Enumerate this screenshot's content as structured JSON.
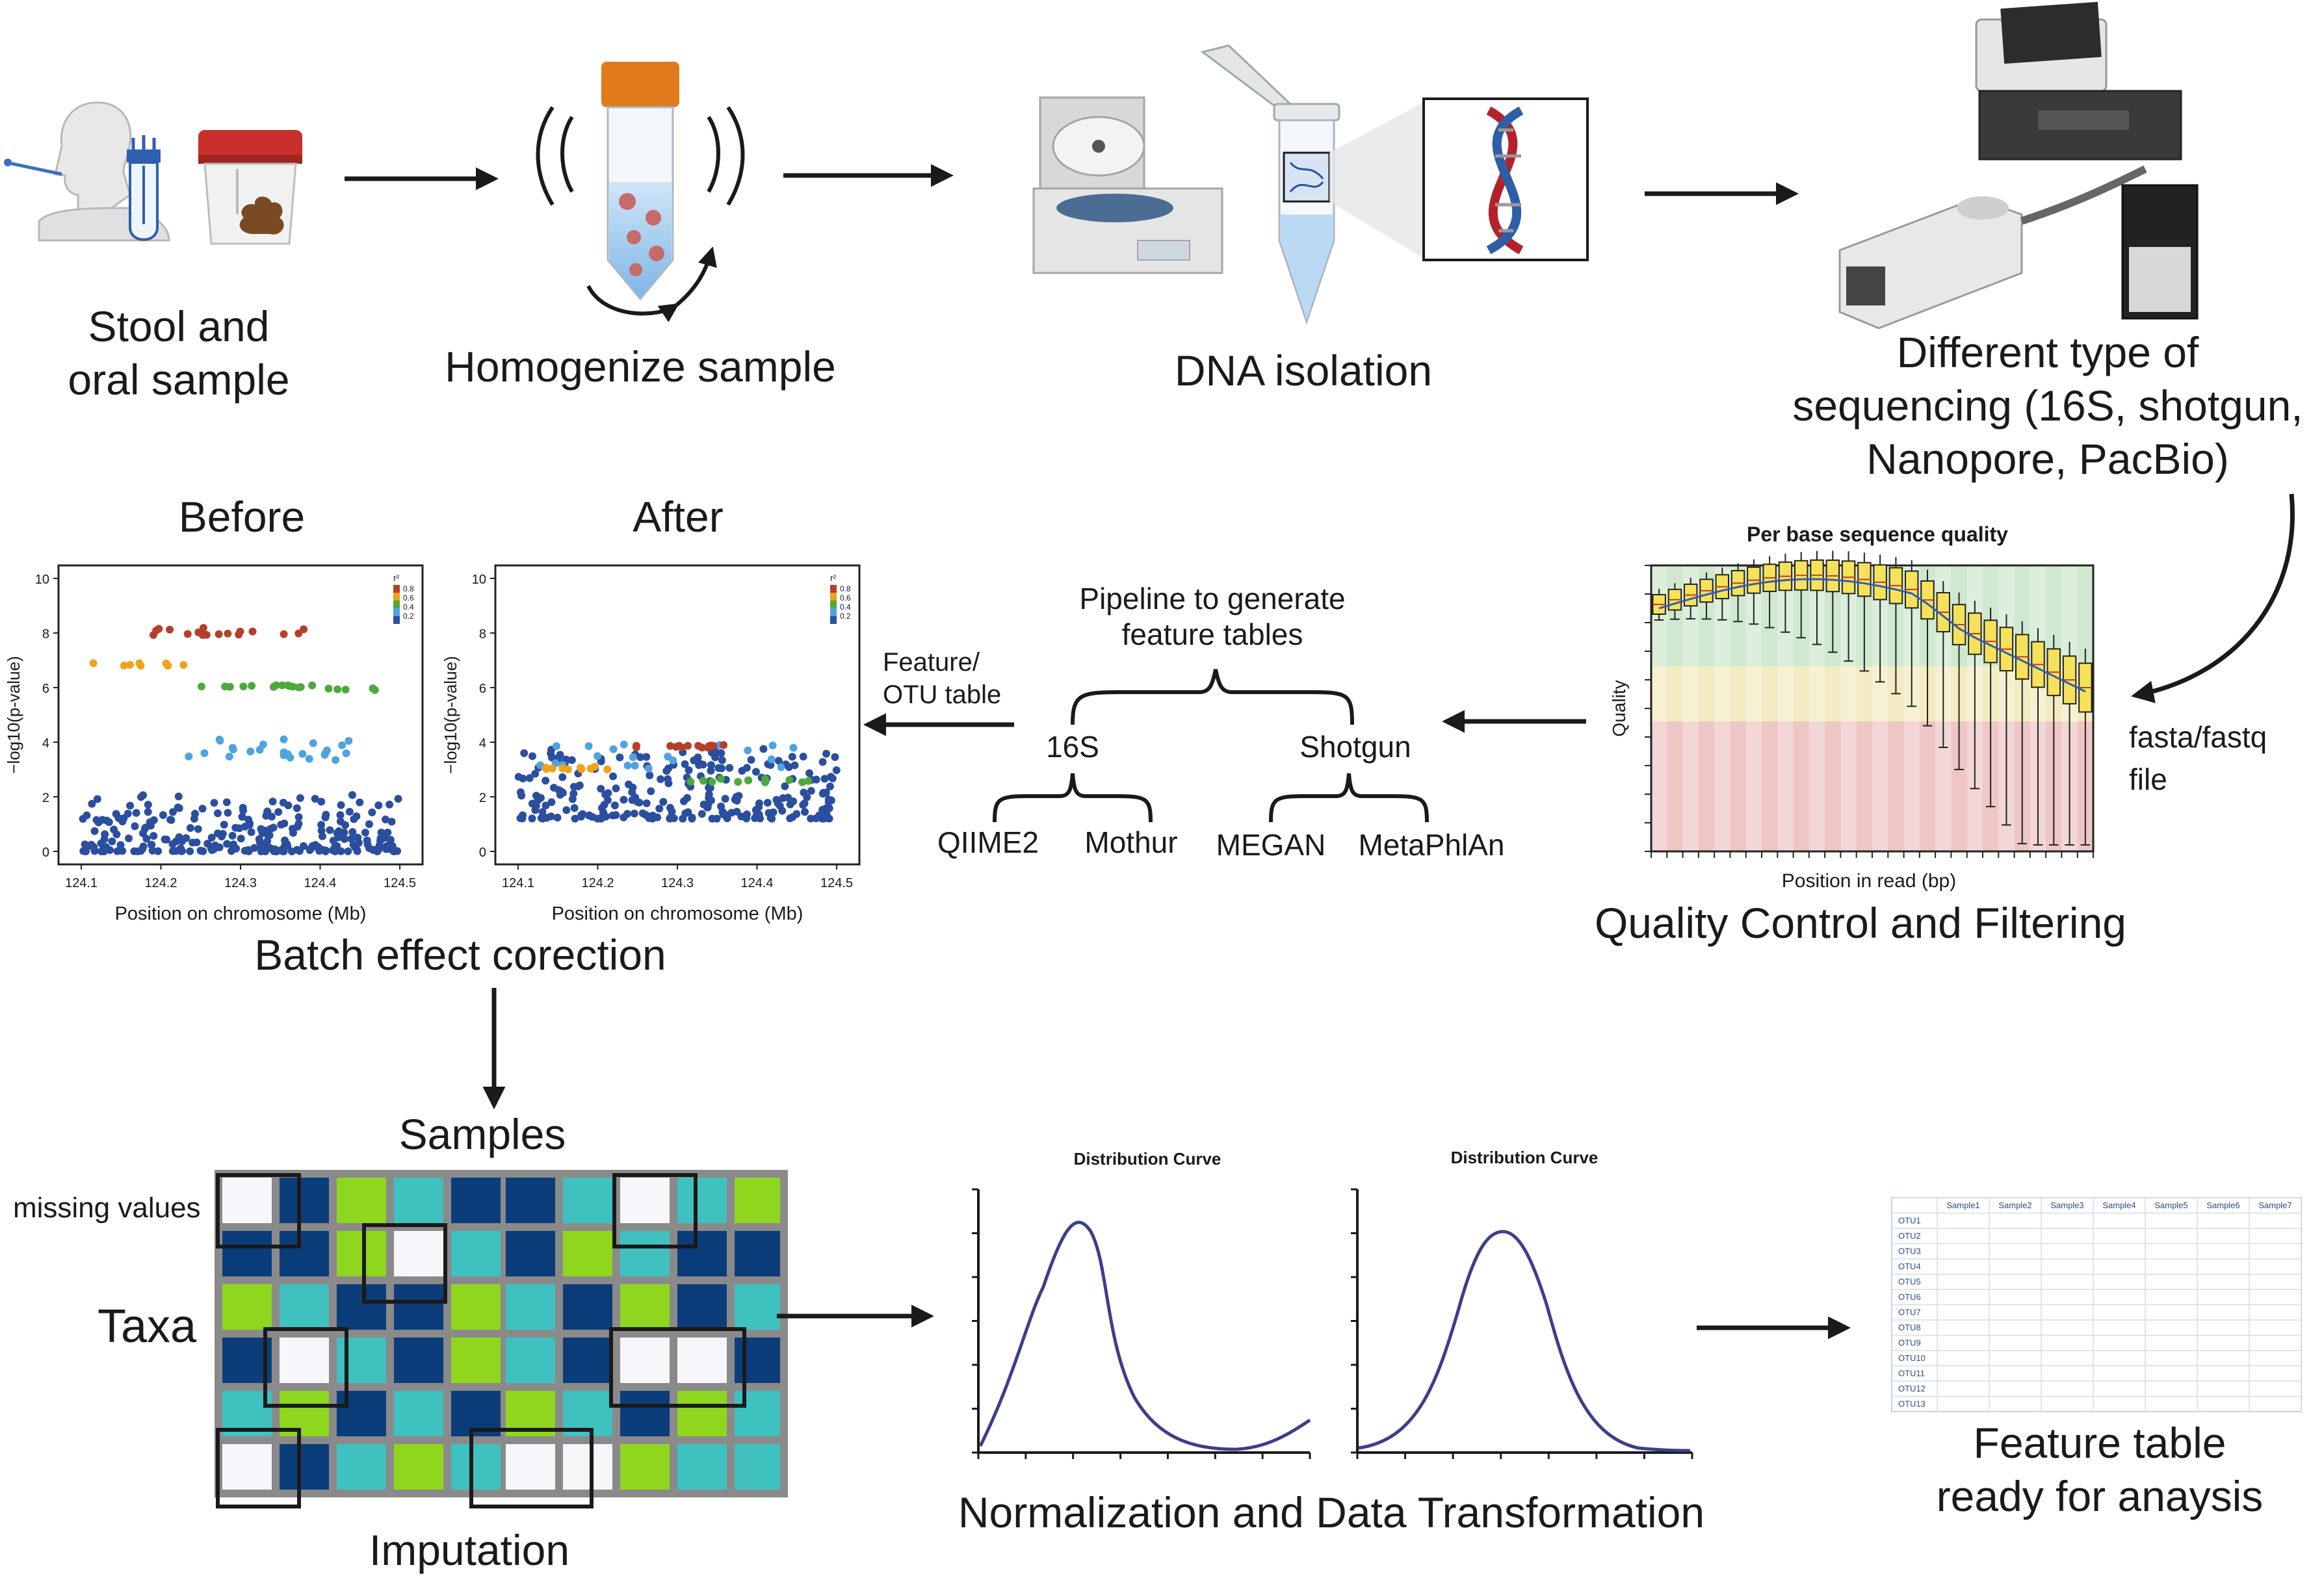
{
  "workflow": {
    "step_stool": {
      "line1": "Stool and",
      "line2": "oral sample"
    },
    "step_homogenize": "Homogenize sample",
    "step_dna": "DNA isolation",
    "step_seq": {
      "line1": "Different type of",
      "line2": "sequencing (16S, shotgun,",
      "line3": "Nanopore, PacBio)"
    },
    "fasta_label": {
      "line1": "fasta/fastq",
      "line2": "file"
    },
    "qc": {
      "title": "Quality Control and Filtering",
      "chart_title": "Per base sequence quality",
      "y_label": "Quality",
      "x_label": "Position in read (bp)"
    },
    "pipeline": {
      "title_line1": "Pipeline to generate",
      "title_line2": "feature tables",
      "branch_16s": "16S",
      "branch_shotgun": "Shotgun",
      "tools_16s": [
        "QIIME2",
        "Mothur"
      ],
      "tools_shotgun": [
        "MEGAN",
        "MetaPhlAn"
      ]
    },
    "feature_otu": {
      "line1": "Feature/",
      "line2": "OTU table"
    },
    "batch": {
      "title": "Batch effect corection",
      "before_title": "Before",
      "after_title": "After",
      "y_label": "−log10(p-value)",
      "x_label": "Position on chromosome (Mb)",
      "x_ticks": [
        "124.1",
        "124.2",
        "124.3",
        "124.4",
        "124.5"
      ],
      "y_ticks": [
        "0",
        "2",
        "4",
        "6",
        "8",
        "10"
      ],
      "legend_title": "r²",
      "legend_ticks": [
        "0.8",
        "0.6",
        "0.4",
        "0.2"
      ]
    },
    "imputation": {
      "title": "Imputation",
      "samples_label": "Samples",
      "taxa_label": "Taxa",
      "missing_label": "missing values"
    },
    "normalization": {
      "title": "Normalization and Data Transformation",
      "curve1_title": "Distribution Curve",
      "curve2_title": "Distribution Curve"
    },
    "feature_table": {
      "title_line1": "Feature table",
      "title_line2": "ready for anaysis",
      "columns": [
        "Sample1",
        "Sample2",
        "Sample3",
        "Sample4",
        "Sample5",
        "Sample6",
        "Sample7"
      ],
      "rows": [
        "OTU1",
        "OTU2",
        "OTU3",
        "OTU4",
        "OTU5",
        "OTU6",
        "OTU7",
        "OTU8",
        "OTU9",
        "OTU10",
        "OTU11",
        "OTU12",
        "OTU13"
      ]
    }
  },
  "colors": {
    "arrow": "#1a1a1a",
    "grid_dark_blue": "#0b3d7a",
    "grid_teal": "#3fc1c0",
    "grid_green": "#8fd61e",
    "grid_bg": "#8a8a8a",
    "curve": "#3b3f8a",
    "dot_blue": "#2b4f9e",
    "dot_light_blue": "#4fa3de",
    "dot_green": "#4daa3a",
    "dot_orange": "#f0a21a",
    "dot_red": "#b4402a"
  },
  "icons": [
    "swab-icon",
    "sample-tube-icon",
    "stool-container-icon",
    "homogenizer-tube-icon",
    "centrifuge-icon",
    "dna-tube-icon",
    "dna-helix-icon",
    "sequencer-icon",
    "nanopore-icon"
  ]
}
